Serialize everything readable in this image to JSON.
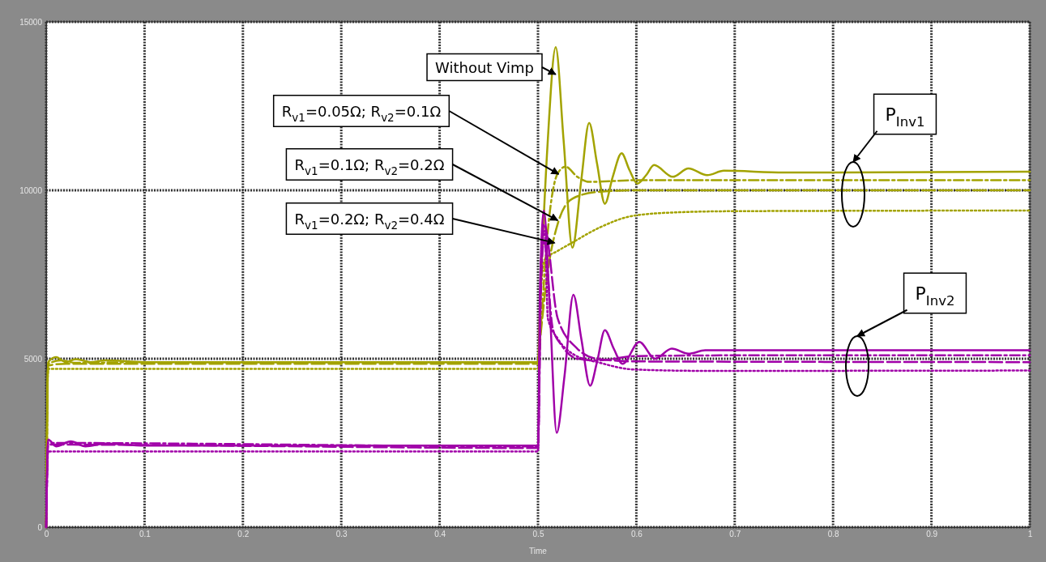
{
  "chart_data": {
    "type": "line",
    "xlabel": "Time",
    "xlim": [
      0,
      1
    ],
    "xticks": [
      0,
      0.1,
      0.2,
      0.3,
      0.4,
      0.5,
      0.6,
      0.7,
      0.8,
      0.9,
      1
    ],
    "ylim": [
      0,
      15000
    ],
    "yticks": [
      0,
      5000,
      10000,
      15000
    ],
    "grid": true,
    "series": [
      {
        "color": "#a3a300",
        "line_style": "solid",
        "x": [
          0,
          0.002,
          0.01,
          0.02,
          0.03,
          0.045,
          0.06,
          0.1,
          0.5,
          0.502,
          0.51,
          0.518,
          0.526,
          0.535,
          0.544,
          0.552,
          0.56,
          0.568,
          0.576,
          0.585,
          0.593,
          0.601,
          0.61,
          0.618,
          0.637,
          0.653,
          0.672,
          0.689,
          0.75,
          1
        ],
        "values": [
          0,
          4900,
          5050,
          4900,
          4990,
          4900,
          4950,
          4900,
          4900,
          6500,
          11500,
          14250,
          11500,
          8300,
          10300,
          12000,
          10800,
          9600,
          10400,
          11100,
          10600,
          10200,
          10450,
          10750,
          10400,
          10650,
          10450,
          10580,
          10530,
          10550
        ]
      },
      {
        "color": "#a3a300",
        "line_style": "dashdot",
        "x": [
          0,
          0.002,
          0.015,
          0.03,
          0.1,
          0.5,
          0.503,
          0.51,
          0.52,
          0.528,
          0.54,
          0.552,
          0.6,
          1
        ],
        "values": [
          0,
          4850,
          4950,
          4880,
          4900,
          4900,
          6000,
          8800,
          10500,
          10700,
          10400,
          10250,
          10300,
          10300
        ]
      },
      {
        "color": "#a3a300",
        "line_style": "dashed",
        "x": [
          0,
          0.002,
          0.02,
          0.5,
          0.503,
          0.51,
          0.52,
          0.535,
          0.56,
          0.6,
          1
        ],
        "values": [
          0,
          4800,
          4850,
          4850,
          5800,
          7600,
          9000,
          9750,
          9950,
          10000,
          10000
        ]
      },
      {
        "color": "#a3a300",
        "line_style": "dotted",
        "x": [
          0,
          0.002,
          0.5,
          0.503,
          0.507,
          0.52,
          0.535,
          0.563,
          0.598,
          0.645,
          0.7,
          1
        ],
        "values": [
          0,
          4700,
          4700,
          7000,
          7950,
          8200,
          8450,
          8900,
          9250,
          9350,
          9380,
          9400
        ]
      },
      {
        "color": "#a000a8",
        "line_style": "solid",
        "x": [
          0,
          0.002,
          0.01,
          0.025,
          0.04,
          0.06,
          0.1,
          0.5,
          0.502,
          0.506,
          0.512,
          0.519,
          0.527,
          0.536,
          0.544,
          0.553,
          0.56,
          0.568,
          0.577,
          0.586,
          0.603,
          0.619,
          0.636,
          0.653,
          0.67,
          1
        ],
        "values": [
          0,
          2600,
          2400,
          2550,
          2400,
          2480,
          2420,
          2420,
          7000,
          9400,
          6500,
          2800,
          4500,
          6900,
          5600,
          4200,
          4900,
          5850,
          5300,
          4850,
          5500,
          5000,
          5300,
          5150,
          5250,
          5250
        ]
      },
      {
        "color": "#a000a8",
        "line_style": "dashdot",
        "x": [
          0,
          0.002,
          0.5,
          0.503,
          0.506,
          0.515,
          0.524,
          0.54,
          0.56,
          0.6,
          0.7,
          1
        ],
        "values": [
          0,
          2500,
          2400,
          7000,
          8500,
          5900,
          5400,
          5000,
          4950,
          5080,
          5100,
          5100
        ]
      },
      {
        "color": "#a000a8",
        "line_style": "dashed",
        "x": [
          0,
          0.002,
          0.5,
          0.503,
          0.506,
          0.52,
          0.54,
          0.56,
          0.6,
          1
        ],
        "values": [
          0,
          2450,
          2350,
          7500,
          9000,
          6200,
          5300,
          5000,
          4920,
          4900
        ]
      },
      {
        "color": "#a000a8",
        "line_style": "dotted",
        "x": [
          0,
          0.002,
          0.5,
          0.503,
          0.507,
          0.51,
          0.52,
          0.535,
          0.563,
          0.598,
          0.672,
          1
        ],
        "values": [
          0,
          2250,
          2250,
          7800,
          8800,
          6200,
          5600,
          5150,
          4880,
          4680,
          4640,
          4650
        ]
      }
    ],
    "annotations": [
      {
        "text": "Without Vimp",
        "x": 0.518,
        "y": 13440
      },
      {
        "text": "R$_{v1}$=0.05Ω; R$_{v2}$=0.1Ω",
        "x": 0.521,
        "y": 10480
      },
      {
        "text": "R$_{v1}$=0.1Ω; R$_{v2}$=0.2Ω",
        "x": 0.52,
        "y": 9110
      },
      {
        "text": "R$_{v1}$=0.2Ω; R$_{v2}$=0.4Ω",
        "x": 0.517,
        "y": 8440
      },
      "P$_{Inv1}$",
      "P$_{Inv2}$"
    ]
  }
}
